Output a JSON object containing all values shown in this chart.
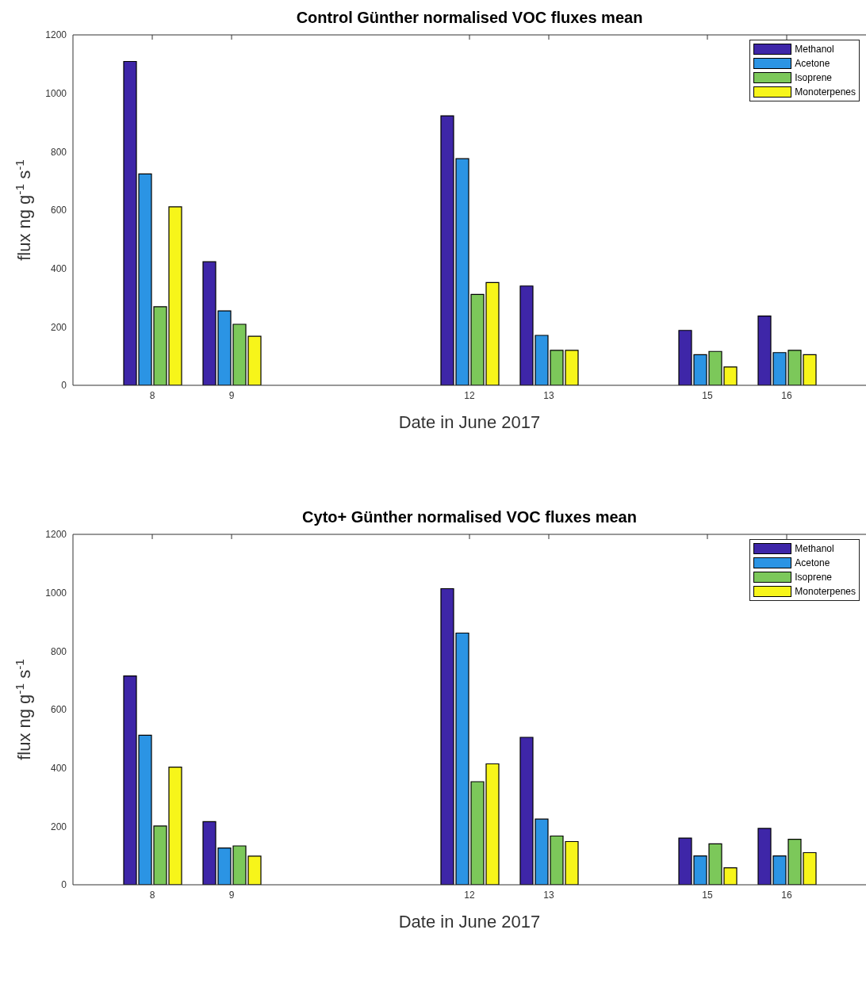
{
  "chart_data": [
    {
      "type": "bar",
      "title": "Control Günther normalised VOC fluxes mean",
      "xlabel": "Date in June 2017",
      "ylabel": "flux ng g$^{-1}$ s$^{-1}$",
      "x": [
        8,
        9,
        12,
        13,
        15,
        16
      ],
      "xlim": [
        7,
        17
      ],
      "xticks": [
        8,
        9,
        12,
        13,
        15,
        16
      ],
      "ylim": [
        0,
        1200
      ],
      "yticks": [
        0,
        200,
        400,
        600,
        800,
        1000,
        1200
      ],
      "legend": "top right",
      "series": [
        {
          "name": "Methanol",
          "color": "#3e26a8",
          "values": [
            1109,
            423,
            923,
            340,
            188,
            237
          ]
        },
        {
          "name": "Acetone",
          "color": "#2b94e4",
          "values": [
            724,
            255,
            776,
            171,
            105,
            112
          ]
        },
        {
          "name": "Isoprene",
          "color": "#7cc85a",
          "values": [
            269,
            209,
            311,
            120,
            116,
            120
          ]
        },
        {
          "name": "Monoterpenes",
          "color": "#f7f51a",
          "values": [
            611,
            168,
            352,
            120,
            63,
            105
          ]
        }
      ]
    },
    {
      "type": "bar",
      "title": "Cyto+ Günther normalised VOC fluxes mean",
      "xlabel": "Date in June 2017",
      "ylabel": "flux ng g$^{-1}$ s$^{-1}$",
      "x": [
        8,
        9,
        12,
        13,
        15,
        16
      ],
      "xlim": [
        7,
        17
      ],
      "xticks": [
        8,
        9,
        12,
        13,
        15,
        16
      ],
      "ylim": [
        0,
        1200
      ],
      "yticks": [
        0,
        200,
        400,
        600,
        800,
        1000,
        1200
      ],
      "legend": "top right",
      "series": [
        {
          "name": "Methanol",
          "color": "#3e26a8",
          "values": [
            715,
            216,
            1014,
            505,
            160,
            193
          ]
        },
        {
          "name": "Acetone",
          "color": "#2b94e4",
          "values": [
            512,
            126,
            862,
            225,
            99,
            99
          ]
        },
        {
          "name": "Isoprene",
          "color": "#7cc85a",
          "values": [
            201,
            133,
            353,
            167,
            140,
            156
          ]
        },
        {
          "name": "Monoterpenes",
          "color": "#f7f51a",
          "values": [
            403,
            98,
            414,
            148,
            58,
            110
          ]
        }
      ]
    }
  ]
}
